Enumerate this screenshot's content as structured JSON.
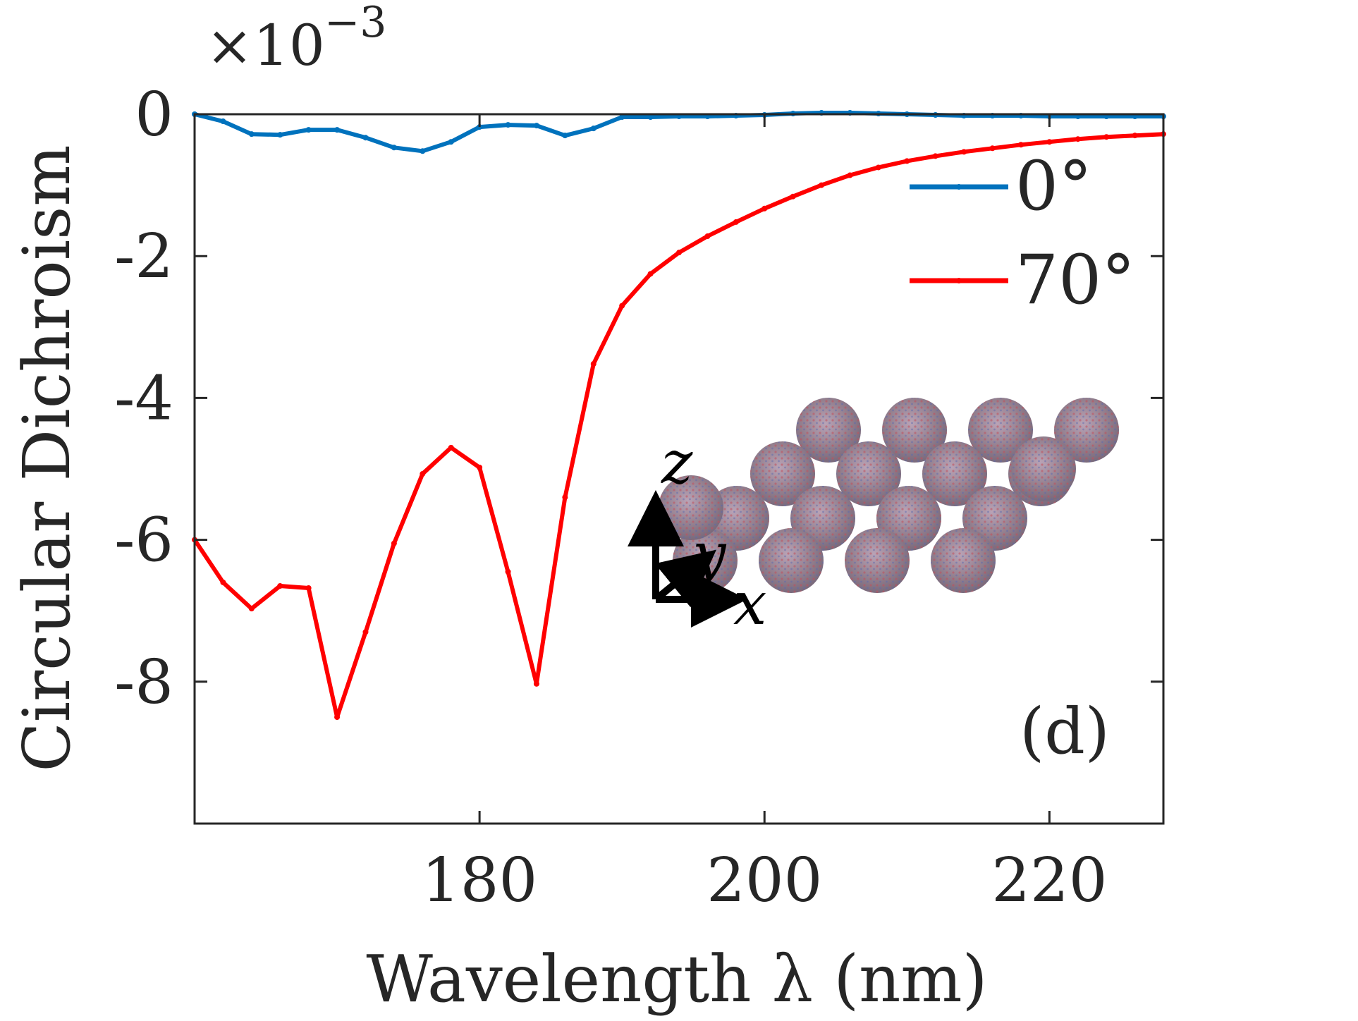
{
  "chart_data": {
    "type": "line",
    "xlabel": "Wavelength λ (nm)",
    "ylabel": "Circular Dichroism",
    "y_exponent_label": "×10",
    "y_exponent_power": "−3",
    "xlim": [
      160,
      228
    ],
    "ylim": [
      -10,
      0
    ],
    "x_ticks": [
      180,
      200,
      220
    ],
    "x_tick_labels": [
      "180",
      "200",
      "220"
    ],
    "y_ticks": [
      0,
      -2,
      -4,
      -6,
      -8
    ],
    "y_tick_labels": [
      "0",
      "-2",
      "-4",
      "-6",
      "-8"
    ],
    "panel_label": "(d)",
    "legend_position": "top-right",
    "colors": {
      "series_0": "#0072BD",
      "series_70": "#FF0000"
    },
    "x": [
      160,
      162,
      164,
      166,
      168,
      170,
      172,
      174,
      176,
      178,
      180,
      182,
      184,
      186,
      188,
      190,
      192,
      194,
      196,
      198,
      200,
      202,
      204,
      206,
      208,
      210,
      212,
      214,
      216,
      218,
      220,
      222,
      224,
      226,
      228
    ],
    "series": [
      {
        "name": "0°",
        "values": [
          0.0,
          -0.1,
          -0.28,
          -0.29,
          -0.22,
          -0.22,
          -0.33,
          -0.47,
          -0.52,
          -0.39,
          -0.18,
          -0.15,
          -0.16,
          -0.3,
          -0.2,
          -0.04,
          -0.04,
          -0.03,
          -0.03,
          -0.02,
          -0.01,
          0.01,
          0.02,
          0.02,
          0.01,
          0.0,
          -0.01,
          -0.02,
          -0.02,
          -0.02,
          -0.03,
          -0.03,
          -0.03,
          -0.03,
          -0.03
        ]
      },
      {
        "name": "70°",
        "values": [
          -6.0,
          -6.6,
          -6.97,
          -6.65,
          -6.68,
          -8.5,
          -7.3,
          -6.05,
          -5.07,
          -4.7,
          -4.98,
          -6.45,
          -8.03,
          -5.4,
          -3.52,
          -2.7,
          -2.25,
          -1.95,
          -1.72,
          -1.52,
          -1.33,
          -1.16,
          -1.0,
          -0.86,
          -0.75,
          -0.66,
          -0.59,
          -0.53,
          -0.48,
          -0.43,
          -0.39,
          -0.35,
          -0.32,
          -0.3,
          -0.28
        ]
      }
    ]
  },
  "inset": {
    "axis_labels": {
      "z": "z",
      "y": "y",
      "x": "x"
    },
    "icons": [
      "nanoparticle-lattice-icon",
      "xyz-axes-icon"
    ]
  }
}
